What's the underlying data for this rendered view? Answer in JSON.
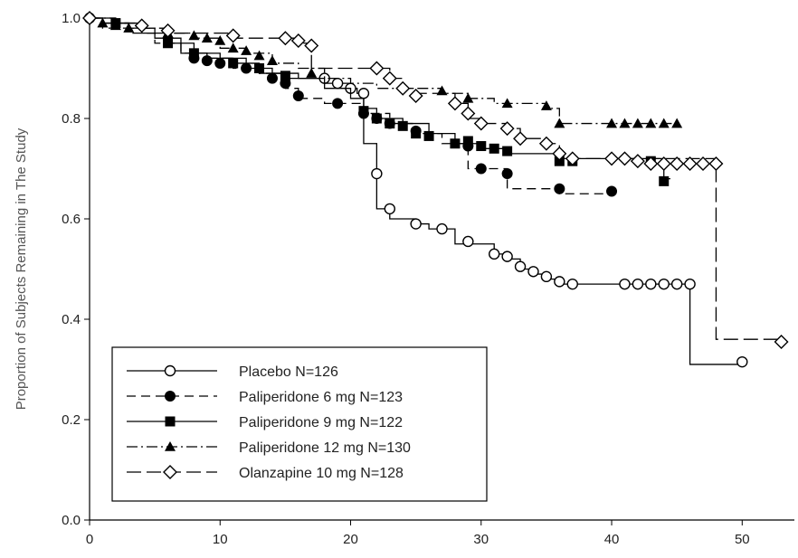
{
  "chart_data": {
    "type": "line",
    "title": "",
    "xlabel": "",
    "ylabel": "Proportion of Subjects Remaining in The Study",
    "xlim": [
      0,
      54
    ],
    "ylim": [
      0,
      1.0
    ],
    "x_ticks": [
      0,
      10,
      20,
      30,
      40,
      50
    ],
    "y_ticks": [
      0.0,
      0.2,
      0.4,
      0.6,
      0.8,
      1.0
    ],
    "y_tick_labels": [
      "0.0",
      "0.2",
      "0.4",
      "0.6",
      "0.8",
      "1.0"
    ],
    "grid": false,
    "legend_position": "bottom-left",
    "series": [
      {
        "name": "Placebo N=126",
        "marker": "circle-open",
        "dash": "solid",
        "steps": [
          [
            0,
            1.0
          ],
          [
            1,
            0.99
          ],
          [
            3,
            0.98
          ],
          [
            5,
            0.96
          ],
          [
            7,
            0.93
          ],
          [
            9,
            0.92
          ],
          [
            11,
            0.91
          ],
          [
            13,
            0.89
          ],
          [
            15,
            0.88
          ],
          [
            17,
            0.88
          ],
          [
            18,
            0.87
          ],
          [
            19,
            0.87
          ],
          [
            20,
            0.86
          ],
          [
            20.5,
            0.85
          ],
          [
            21,
            0.75
          ],
          [
            22,
            0.62
          ],
          [
            23,
            0.6
          ],
          [
            25,
            0.59
          ],
          [
            26,
            0.58
          ],
          [
            28,
            0.55
          ],
          [
            31,
            0.53
          ],
          [
            32,
            0.52
          ],
          [
            33,
            0.5
          ],
          [
            34,
            0.49
          ],
          [
            35,
            0.48
          ],
          [
            36,
            0.47
          ],
          [
            37,
            0.47
          ],
          [
            46,
            0.31
          ],
          [
            50,
            0.31
          ]
        ],
        "markers_at": [
          [
            0,
            1.0
          ],
          [
            18,
            0.88
          ],
          [
            19,
            0.87
          ],
          [
            20,
            0.86
          ],
          [
            21,
            0.85
          ],
          [
            22,
            0.69
          ],
          [
            23,
            0.62
          ],
          [
            25,
            0.59
          ],
          [
            27,
            0.58
          ],
          [
            29,
            0.555
          ],
          [
            31,
            0.53
          ],
          [
            32,
            0.525
          ],
          [
            33,
            0.505
          ],
          [
            34,
            0.495
          ],
          [
            35,
            0.485
          ],
          [
            36,
            0.475
          ],
          [
            37,
            0.47
          ],
          [
            41,
            0.47
          ],
          [
            42,
            0.47
          ],
          [
            43,
            0.47
          ],
          [
            44,
            0.47
          ],
          [
            45,
            0.47
          ],
          [
            46,
            0.47
          ],
          [
            50,
            0.315
          ]
        ]
      },
      {
        "name": "Paliperidone 6 mg N=123",
        "marker": "circle-filled",
        "dash": "dash",
        "steps": [
          [
            0,
            1.0
          ],
          [
            1,
            0.98
          ],
          [
            3,
            0.97
          ],
          [
            5,
            0.95
          ],
          [
            7,
            0.93
          ],
          [
            9,
            0.92
          ],
          [
            11,
            0.9
          ],
          [
            13,
            0.89
          ],
          [
            15,
            0.86
          ],
          [
            16,
            0.84
          ],
          [
            18,
            0.83
          ],
          [
            21,
            0.81
          ],
          [
            23,
            0.79
          ],
          [
            25,
            0.77
          ],
          [
            27,
            0.75
          ],
          [
            29,
            0.7
          ],
          [
            31,
            0.7
          ],
          [
            32,
            0.66
          ],
          [
            35,
            0.66
          ],
          [
            36,
            0.65
          ],
          [
            40,
            0.65
          ]
        ],
        "markers_at": [
          [
            8,
            0.92
          ],
          [
            9,
            0.915
          ],
          [
            10,
            0.91
          ],
          [
            12,
            0.9
          ],
          [
            14,
            0.88
          ],
          [
            15,
            0.87
          ],
          [
            16,
            0.845
          ],
          [
            19,
            0.83
          ],
          [
            21,
            0.81
          ],
          [
            22,
            0.8
          ],
          [
            23,
            0.79
          ],
          [
            25,
            0.775
          ],
          [
            29,
            0.745
          ],
          [
            30,
            0.7
          ],
          [
            32,
            0.69
          ],
          [
            36,
            0.66
          ],
          [
            40,
            0.655
          ]
        ]
      },
      {
        "name": "Paliperidone 9 mg N=122",
        "marker": "square-filled",
        "dash": "solid",
        "steps": [
          [
            0,
            1.0
          ],
          [
            2,
            0.99
          ],
          [
            4,
            0.97
          ],
          [
            6,
            0.95
          ],
          [
            8,
            0.93
          ],
          [
            10,
            0.92
          ],
          [
            12,
            0.9
          ],
          [
            14,
            0.89
          ],
          [
            16,
            0.88
          ],
          [
            18,
            0.86
          ],
          [
            20,
            0.84
          ],
          [
            21,
            0.82
          ],
          [
            22,
            0.8
          ],
          [
            24,
            0.79
          ],
          [
            26,
            0.77
          ],
          [
            28,
            0.75
          ],
          [
            30,
            0.74
          ],
          [
            32,
            0.73
          ],
          [
            36,
            0.72
          ],
          [
            43,
            0.72
          ],
          [
            44,
            0.68
          ],
          [
            44.5,
            0.68
          ]
        ],
        "markers_at": [
          [
            2,
            0.99
          ],
          [
            6,
            0.95
          ],
          [
            8,
            0.93
          ],
          [
            11,
            0.91
          ],
          [
            13,
            0.9
          ],
          [
            15,
            0.885
          ],
          [
            21,
            0.815
          ],
          [
            22,
            0.8
          ],
          [
            23,
            0.79
          ],
          [
            24,
            0.785
          ],
          [
            25,
            0.77
          ],
          [
            26,
            0.765
          ],
          [
            28,
            0.75
          ],
          [
            29,
            0.755
          ],
          [
            30,
            0.745
          ],
          [
            31,
            0.74
          ],
          [
            32,
            0.735
          ],
          [
            36,
            0.715
          ],
          [
            37,
            0.715
          ],
          [
            43,
            0.715
          ],
          [
            44,
            0.675
          ]
        ]
      },
      {
        "name": "Paliperidone 12 mg N=130",
        "marker": "triangle-filled",
        "dash": "dashdot",
        "steps": [
          [
            0,
            1.0
          ],
          [
            2,
            0.99
          ],
          [
            4,
            0.98
          ],
          [
            6,
            0.97
          ],
          [
            8,
            0.96
          ],
          [
            10,
            0.94
          ],
          [
            12,
            0.93
          ],
          [
            14,
            0.91
          ],
          [
            16,
            0.9
          ],
          [
            18,
            0.88
          ],
          [
            20,
            0.87
          ],
          [
            22,
            0.86
          ],
          [
            24,
            0.86
          ],
          [
            27,
            0.85
          ],
          [
            29,
            0.84
          ],
          [
            31,
            0.83
          ],
          [
            34,
            0.83
          ],
          [
            35,
            0.82
          ],
          [
            36,
            0.79
          ],
          [
            45,
            0.79
          ]
        ],
        "markers_at": [
          [
            1,
            0.99
          ],
          [
            2,
            0.985
          ],
          [
            3,
            0.98
          ],
          [
            6,
            0.97
          ],
          [
            8,
            0.965
          ],
          [
            9,
            0.96
          ],
          [
            10,
            0.955
          ],
          [
            11,
            0.94
          ],
          [
            12,
            0.935
          ],
          [
            13,
            0.925
          ],
          [
            14,
            0.915
          ],
          [
            17,
            0.89
          ],
          [
            27,
            0.855
          ],
          [
            29,
            0.84
          ],
          [
            32,
            0.83
          ],
          [
            35,
            0.825
          ],
          [
            36,
            0.79
          ],
          [
            40,
            0.79
          ],
          [
            41,
            0.79
          ],
          [
            42,
            0.79
          ],
          [
            43,
            0.79
          ],
          [
            44,
            0.79
          ],
          [
            45,
            0.79
          ]
        ]
      },
      {
        "name": "Olanzapine 10 mg N=128",
        "marker": "diamond-open",
        "dash": "longdash",
        "steps": [
          [
            0,
            1.0
          ],
          [
            1,
            0.99
          ],
          [
            3,
            0.98
          ],
          [
            6,
            0.97
          ],
          [
            10,
            0.97
          ],
          [
            11,
            0.96
          ],
          [
            15,
            0.96
          ],
          [
            16,
            0.95
          ],
          [
            17,
            0.9
          ],
          [
            22,
            0.9
          ],
          [
            23,
            0.88
          ],
          [
            24,
            0.86
          ],
          [
            25,
            0.85
          ],
          [
            28,
            0.83
          ],
          [
            29,
            0.8
          ],
          [
            30,
            0.79
          ],
          [
            32,
            0.78
          ],
          [
            33,
            0.76
          ],
          [
            35,
            0.75
          ],
          [
            36,
            0.73
          ],
          [
            37,
            0.72
          ],
          [
            40,
            0.72
          ],
          [
            48,
            0.71
          ],
          [
            48,
            0.36
          ],
          [
            53,
            0.36
          ]
        ],
        "markers_at": [
          [
            0,
            1.0
          ],
          [
            4,
            0.985
          ],
          [
            6,
            0.975
          ],
          [
            11,
            0.965
          ],
          [
            15,
            0.96
          ],
          [
            16,
            0.955
          ],
          [
            17,
            0.945
          ],
          [
            22,
            0.9
          ],
          [
            23,
            0.88
          ],
          [
            24,
            0.86
          ],
          [
            25,
            0.845
          ],
          [
            28,
            0.83
          ],
          [
            29,
            0.81
          ],
          [
            30,
            0.79
          ],
          [
            32,
            0.78
          ],
          [
            33,
            0.76
          ],
          [
            35,
            0.75
          ],
          [
            36,
            0.73
          ],
          [
            37,
            0.72
          ],
          [
            40,
            0.72
          ],
          [
            41,
            0.72
          ],
          [
            42,
            0.715
          ],
          [
            43,
            0.71
          ],
          [
            44,
            0.71
          ],
          [
            45,
            0.71
          ],
          [
            46,
            0.71
          ],
          [
            47,
            0.71
          ],
          [
            48,
            0.71
          ],
          [
            53,
            0.355
          ]
        ]
      }
    ]
  }
}
